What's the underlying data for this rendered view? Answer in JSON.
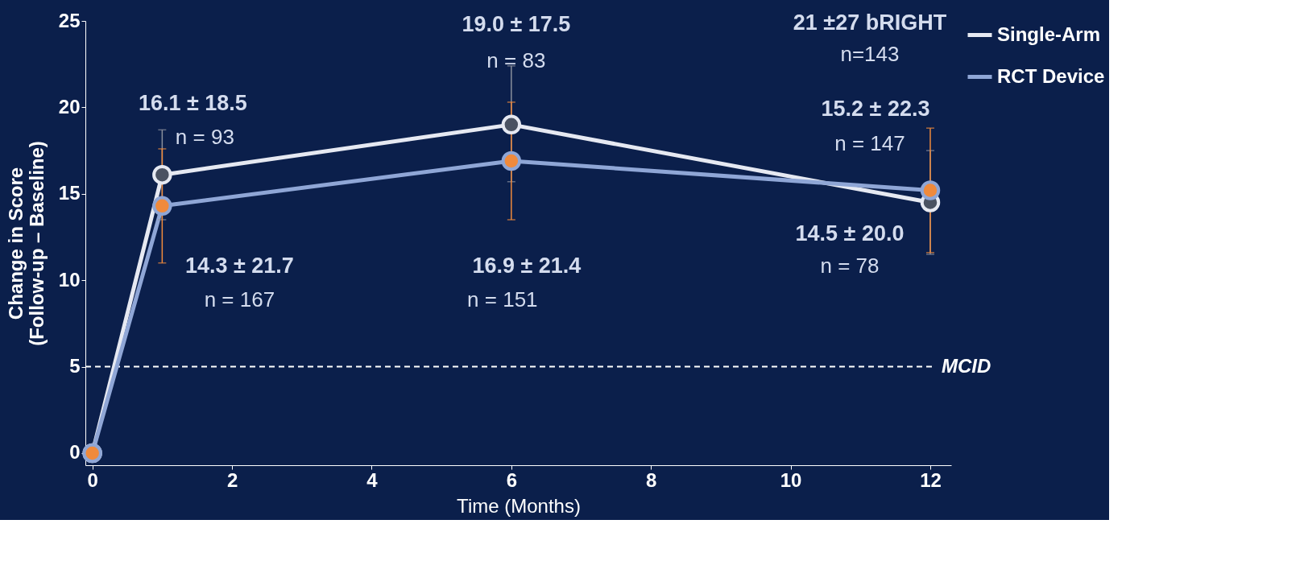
{
  "chart_data": {
    "type": "line",
    "xlabel": "Time (Months)",
    "ylabel": "Change in Score (Follow-up – Baseline)",
    "x": [
      0,
      1,
      6,
      12
    ],
    "xlim": [
      -0.1,
      12.3
    ],
    "ylim": [
      -0.7,
      25
    ],
    "xticks": [
      0,
      2,
      4,
      6,
      8,
      10,
      12
    ],
    "yticks": [
      0,
      5,
      10,
      15,
      20,
      25
    ],
    "series": [
      {
        "name": "Single-Arm",
        "color": "#e6e9f2",
        "values": [
          0,
          16.1,
          19.0,
          14.5
        ],
        "errors": [
          null,
          [
            13.5,
            18.7
          ],
          [
            15.7,
            22.4
          ],
          [
            11.5,
            17.5
          ]
        ]
      },
      {
        "name": "RCT Device",
        "color": "#8fa6d6",
        "values": [
          0,
          14.3,
          16.9,
          15.2
        ],
        "errors": [
          null,
          [
            11.0,
            17.6
          ],
          [
            13.5,
            20.3
          ],
          [
            11.6,
            18.8
          ]
        ]
      }
    ],
    "ref_lines": [
      {
        "axis": "y",
        "value": 5,
        "label": "MCID",
        "line_style": "dashed",
        "color": "#ffffff"
      }
    ],
    "annotations": [
      "16.1 ± 18.5",
      "n = 93",
      "19.0 ± 17.5",
      "n = 83",
      "21 ±27 bRIGHT",
      "n=143",
      "15.2 ± 22.3",
      "n = 147",
      "14.3 ± 21.7",
      "n = 167",
      "16.9 ± 21.4",
      "n = 151",
      "14.5 ± 20.0",
      "n = 78"
    ],
    "legend": "right",
    "grid": false,
    "marker": "circle",
    "line_style": "solid"
  }
}
